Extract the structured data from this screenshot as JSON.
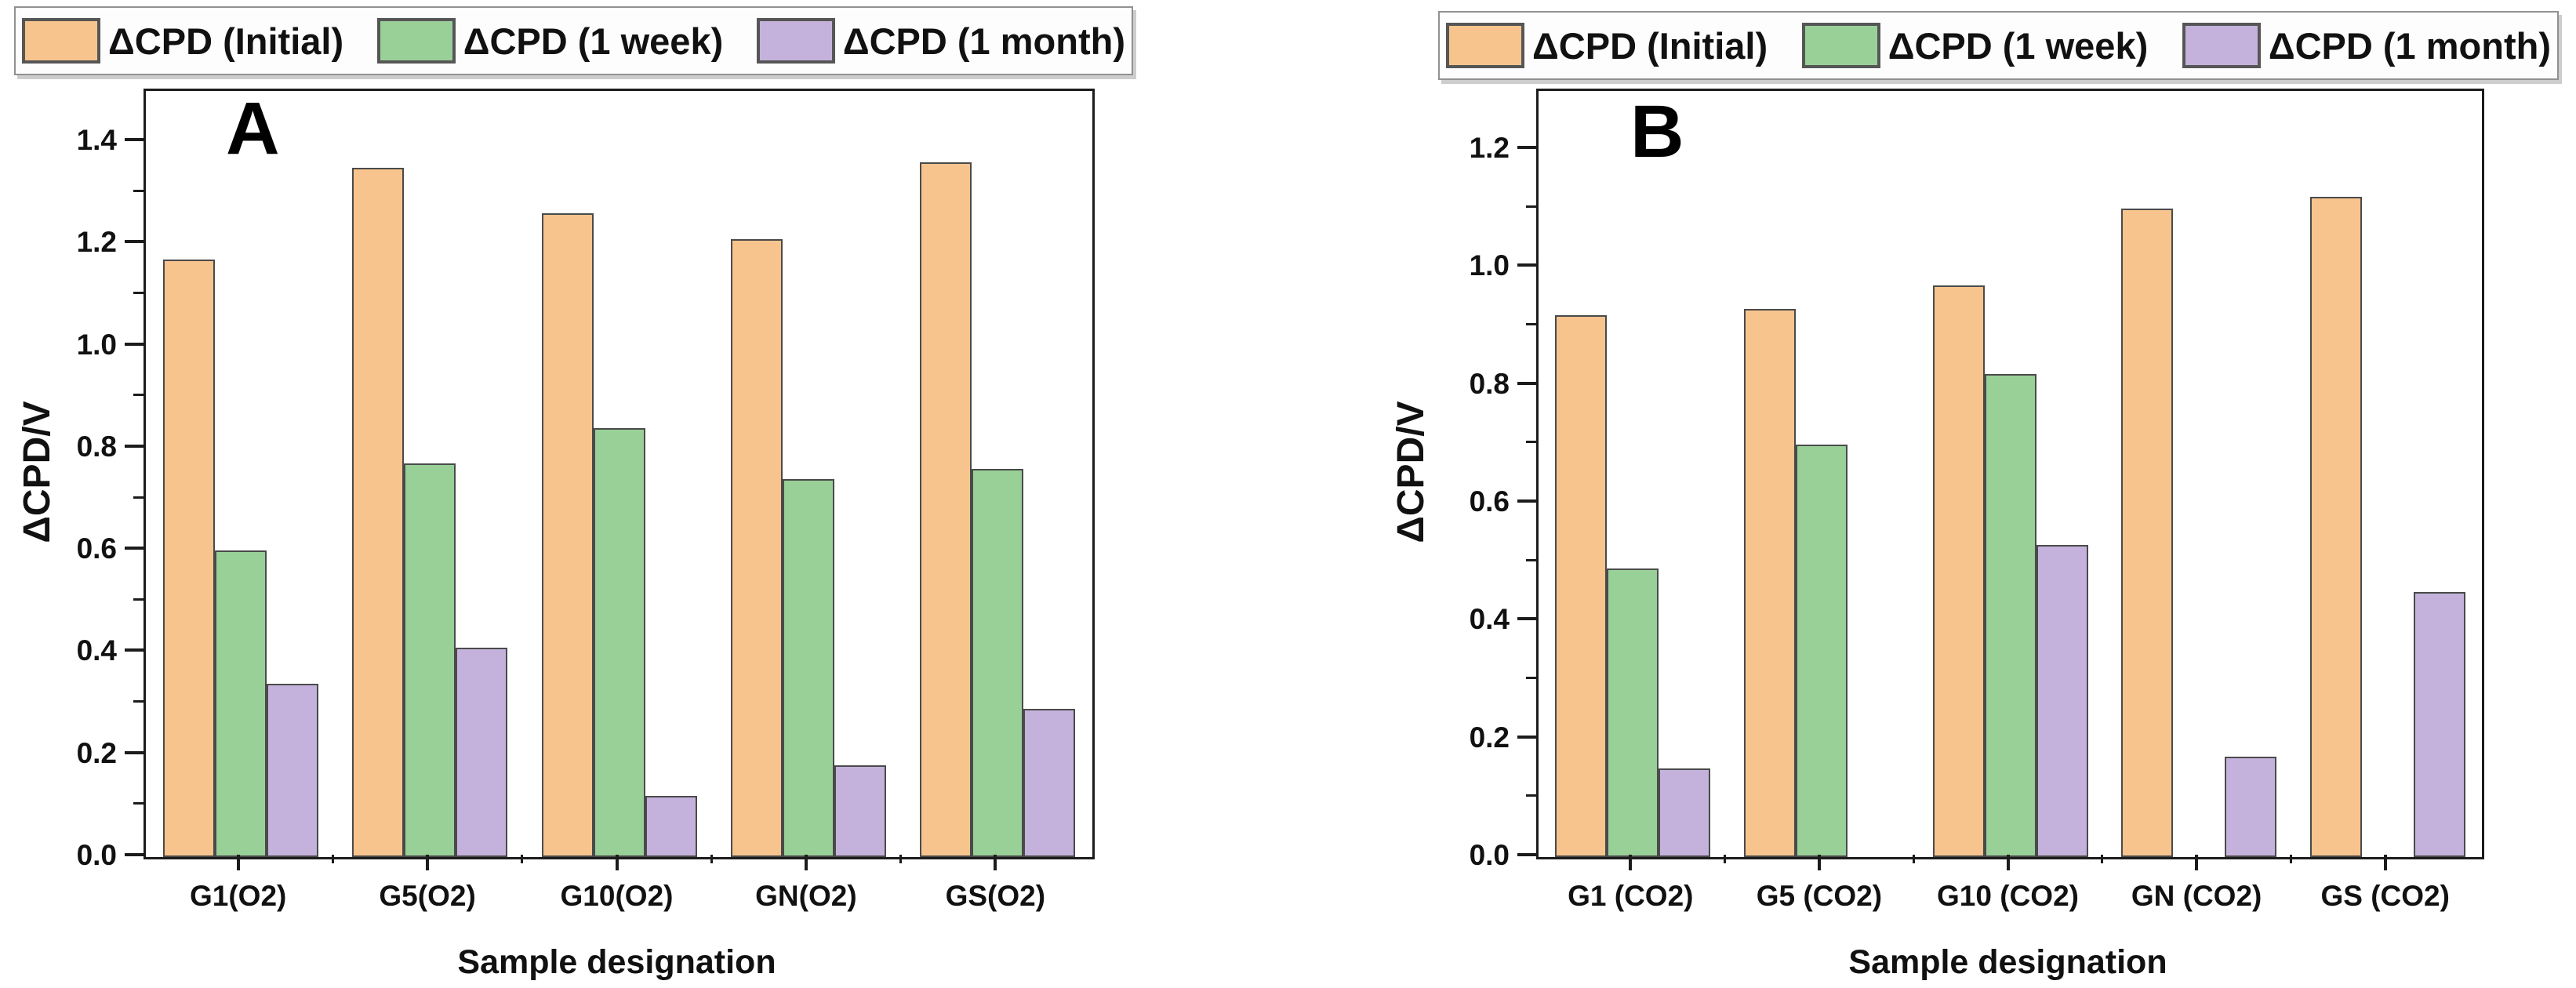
{
  "page": {
    "background_color": "#ffffff",
    "frame_color": "#1c1c1c",
    "bar_border_color": "#4a4a4a"
  },
  "chart_data": [
    {
      "type": "bar",
      "panel_label": "A",
      "xlabel": "Sample designation",
      "ylabel": "ΔCPD/V",
      "legend_position": "top",
      "grid": false,
      "categories": [
        "G1(O2)",
        "G5(O2)",
        "G10(O2)",
        "GN(O2)",
        "GS(O2)"
      ],
      "series": [
        {
          "name": "ΔCPD (Initial)",
          "color": "#f7c48e",
          "values": [
            1.17,
            1.35,
            1.26,
            1.21,
            1.36
          ]
        },
        {
          "name": "ΔCPD (1 week)",
          "color": "#98d098",
          "values": [
            0.6,
            0.77,
            0.84,
            0.74,
            0.76
          ]
        },
        {
          "name": "ΔCPD (1 month)",
          "color": "#c4b2dc",
          "values": [
            0.34,
            0.41,
            0.12,
            0.18,
            0.29
          ]
        }
      ],
      "ylim": [
        0,
        1.5
      ],
      "ytick_step": 0.2,
      "ytick_max": 1.4,
      "yminor_step": 0.1
    },
    {
      "type": "bar",
      "panel_label": "B",
      "xlabel": "Sample designation",
      "ylabel": "ΔCPD/V",
      "legend_position": "top",
      "grid": false,
      "categories": [
        "G1 (CO2)",
        "G5 (CO2)",
        "G10 (CO2)",
        "GN (CO2)",
        "GS (CO2)"
      ],
      "series": [
        {
          "name": "ΔCPD (Initial)",
          "color": "#f7c48e",
          "values": [
            0.92,
            0.93,
            0.97,
            1.1,
            1.12
          ]
        },
        {
          "name": "ΔCPD (1 week)",
          "color": "#98d098",
          "values": [
            0.49,
            0.7,
            0.82,
            null,
            null
          ]
        },
        {
          "name": "ΔCPD (1 month)",
          "color": "#c4b2dc",
          "values": [
            0.15,
            null,
            0.53,
            0.17,
            0.45
          ]
        }
      ],
      "ylim": [
        0,
        1.3
      ],
      "ytick_step": 0.2,
      "ytick_max": 1.2,
      "yminor_step": 0.1
    }
  ]
}
